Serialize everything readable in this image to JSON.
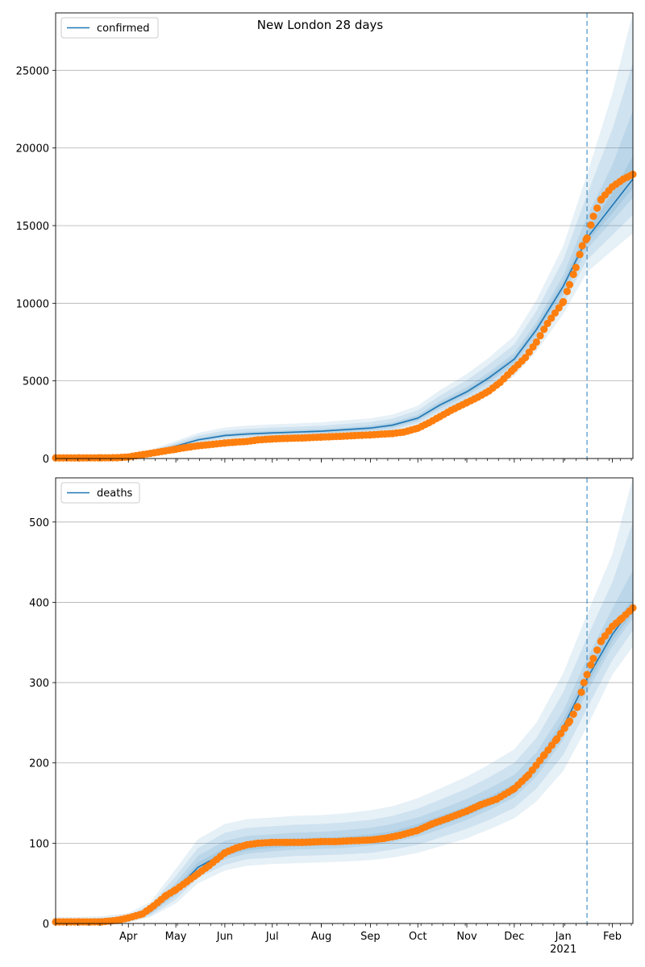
{
  "title": "New London 28 days",
  "colors": {
    "model_line": "#1f77b4",
    "band": "#1f77b4",
    "observed": "#ff7f0e",
    "grid": "#b0b0b0"
  },
  "x_axis": {
    "start": "2020-02-15",
    "end": "2021-02-14",
    "month_labels": [
      {
        "date": "2020-04-01",
        "label": "Apr"
      },
      {
        "date": "2020-05-01",
        "label": "May"
      },
      {
        "date": "2020-06-01",
        "label": "Jun"
      },
      {
        "date": "2020-07-01",
        "label": "Jul"
      },
      {
        "date": "2020-08-01",
        "label": "Aug"
      },
      {
        "date": "2020-09-01",
        "label": "Sep"
      },
      {
        "date": "2020-10-01",
        "label": "Oct"
      },
      {
        "date": "2020-11-01",
        "label": "Nov"
      },
      {
        "date": "2020-12-01",
        "label": "Dec"
      },
      {
        "date": "2021-01-01",
        "label": "Jan"
      },
      {
        "date": "2021-02-01",
        "label": "Feb"
      }
    ],
    "year_label": {
      "date": "2021-01-01",
      "label": "2021"
    },
    "forecast_date": "2021-01-16"
  },
  "chart_data": [
    {
      "type": "line",
      "name": "confirmed",
      "legend": "confirmed",
      "ylim": [
        0,
        28700
      ],
      "yticks": [
        0,
        5000,
        10000,
        15000,
        20000,
        25000
      ],
      "grid": true,
      "legend_position": "top-left",
      "x": [
        "2020-02-15",
        "2020-03-01",
        "2020-03-15",
        "2020-04-01",
        "2020-04-15",
        "2020-05-01",
        "2020-05-15",
        "2020-06-01",
        "2020-06-15",
        "2020-07-01",
        "2020-07-15",
        "2020-08-01",
        "2020-08-15",
        "2020-09-01",
        "2020-09-15",
        "2020-10-01",
        "2020-10-15",
        "2020-11-01",
        "2020-11-15",
        "2020-12-01",
        "2020-12-15",
        "2021-01-01",
        "2021-01-16",
        "2021-02-01",
        "2021-02-14"
      ],
      "model": [
        40,
        40,
        45,
        90,
        400,
        800,
        1200,
        1480,
        1580,
        1650,
        1700,
        1760,
        1850,
        1960,
        2150,
        2600,
        3450,
        4300,
        5200,
        6400,
        8300,
        11100,
        14200,
        16300,
        18000
      ],
      "bands": [
        {
          "lower": [
            35,
            35,
            40,
            70,
            300,
            620,
            950,
            1200,
            1280,
            1330,
            1360,
            1400,
            1470,
            1560,
            1700,
            2100,
            2800,
            3550,
            4300,
            5300,
            6900,
            9300,
            12000,
            13400,
            14500
          ],
          "upper": [
            60,
            60,
            65,
            130,
            560,
            1120,
            1650,
            2000,
            2120,
            2200,
            2260,
            2330,
            2450,
            2590,
            2830,
            3400,
            4400,
            5450,
            6500,
            7900,
            10200,
            13700,
            18300,
            23500,
            28700
          ]
        },
        {
          "lower": [
            36,
            36,
            42,
            75,
            330,
            680,
            1040,
            1300,
            1380,
            1430,
            1470,
            1520,
            1590,
            1690,
            1850,
            2270,
            3020,
            3800,
            4600,
            5680,
            7400,
            9950,
            12800,
            14400,
            15700
          ],
          "upper": [
            52,
            52,
            58,
            115,
            500,
            1000,
            1480,
            1800,
            1910,
            1990,
            2040,
            2110,
            2220,
            2350,
            2570,
            3100,
            4050,
            5050,
            6050,
            7350,
            9500,
            12800,
            17000,
            21200,
            25500
          ]
        },
        {
          "lower": [
            37,
            37,
            43,
            80,
            360,
            730,
            1110,
            1380,
            1470,
            1530,
            1570,
            1620,
            1700,
            1800,
            1980,
            2420,
            3220,
            4050,
            4900,
            6030,
            7850,
            10500,
            13500,
            15300,
            16800
          ],
          "upper": [
            47,
            47,
            52,
            105,
            450,
            900,
            1330,
            1620,
            1720,
            1790,
            1840,
            1900,
            2000,
            2120,
            2330,
            2810,
            3700,
            4600,
            5550,
            6800,
            8800,
            11800,
            15600,
            18900,
            22400
          ]
        },
        {
          "lower": [
            38,
            38,
            44,
            84,
            380,
            765,
            1160,
            1430,
            1530,
            1590,
            1640,
            1690,
            1780,
            1880,
            2060,
            2510,
            3340,
            4180,
            5060,
            6220,
            8100,
            10800,
            13900,
            15800,
            17400
          ],
          "upper": [
            43,
            43,
            48,
            97,
            420,
            840,
            1250,
            1530,
            1630,
            1700,
            1750,
            1810,
            1910,
            2030,
            2230,
            2700,
            3560,
            4420,
            5350,
            6580,
            8550,
            11400,
            14700,
            17100,
            19500
          ]
        }
      ],
      "observed": [
        [
          "2020-02-15",
          40
        ],
        [
          "2020-03-01",
          40
        ],
        [
          "2020-03-15",
          45
        ],
        [
          "2020-03-25",
          55
        ],
        [
          "2020-04-01",
          100
        ],
        [
          "2020-04-08",
          220
        ],
        [
          "2020-04-15",
          330
        ],
        [
          "2020-04-22",
          450
        ],
        [
          "2020-05-01",
          600
        ],
        [
          "2020-05-08",
          720
        ],
        [
          "2020-05-15",
          820
        ],
        [
          "2020-05-22",
          890
        ],
        [
          "2020-06-01",
          1000
        ],
        [
          "2020-06-08",
          1060
        ],
        [
          "2020-06-15",
          1100
        ],
        [
          "2020-06-22",
          1200
        ],
        [
          "2020-07-01",
          1260
        ],
        [
          "2020-07-08",
          1290
        ],
        [
          "2020-07-15",
          1310
        ],
        [
          "2020-07-22",
          1330
        ],
        [
          "2020-08-01",
          1380
        ],
        [
          "2020-08-08",
          1410
        ],
        [
          "2020-08-15",
          1440
        ],
        [
          "2020-08-22",
          1480
        ],
        [
          "2020-09-01",
          1520
        ],
        [
          "2020-09-08",
          1570
        ],
        [
          "2020-09-15",
          1610
        ],
        [
          "2020-09-22",
          1700
        ],
        [
          "2020-10-01",
          1950
        ],
        [
          "2020-10-08",
          2300
        ],
        [
          "2020-10-15",
          2700
        ],
        [
          "2020-10-22",
          3100
        ],
        [
          "2020-11-01",
          3600
        ],
        [
          "2020-11-08",
          3950
        ],
        [
          "2020-11-15",
          4350
        ],
        [
          "2020-11-22",
          4900
        ],
        [
          "2020-12-01",
          5800
        ],
        [
          "2020-12-08",
          6500
        ],
        [
          "2020-12-15",
          7500
        ],
        [
          "2020-12-22",
          8700
        ],
        [
          "2021-01-01",
          10100
        ],
        [
          "2021-01-05",
          11200
        ],
        [
          "2021-01-09",
          12300
        ],
        [
          "2021-01-13",
          13700
        ],
        [
          "2021-01-16",
          14200
        ],
        [
          "2021-01-20",
          15600
        ],
        [
          "2021-01-25",
          16700
        ],
        [
          "2021-02-01",
          17500
        ],
        [
          "2021-02-08",
          18000
        ],
        [
          "2021-02-14",
          18300
        ]
      ]
    },
    {
      "type": "line",
      "name": "deaths",
      "legend": "deaths",
      "ylim": [
        0,
        555
      ],
      "yticks": [
        0,
        100,
        200,
        300,
        400,
        500
      ],
      "grid": true,
      "legend_position": "top-left",
      "x": [
        "2020-02-15",
        "2020-03-01",
        "2020-03-15",
        "2020-04-01",
        "2020-04-15",
        "2020-05-01",
        "2020-05-15",
        "2020-06-01",
        "2020-06-15",
        "2020-07-01",
        "2020-07-15",
        "2020-08-01",
        "2020-08-15",
        "2020-09-01",
        "2020-09-15",
        "2020-10-01",
        "2020-10-15",
        "2020-11-01",
        "2020-11-15",
        "2020-12-01",
        "2020-12-15",
        "2021-01-01",
        "2021-01-16",
        "2021-02-01",
        "2021-02-14"
      ],
      "model": [
        2,
        2,
        2,
        5,
        15,
        42,
        70,
        88,
        96,
        99,
        101,
        102,
        103,
        106,
        110,
        118,
        128,
        140,
        152,
        168,
        195,
        245,
        305,
        360,
        395
      ],
      "bands": [
        {
          "lower": [
            0,
            0,
            0,
            1,
            8,
            25,
            50,
            66,
            72,
            74,
            75,
            76,
            77,
            79,
            82,
            88,
            96,
            106,
            117,
            131,
            152,
            190,
            245,
            310,
            345
          ],
          "upper": [
            8,
            8,
            9,
            13,
            27,
            68,
            105,
            124,
            130,
            132,
            134,
            135,
            137,
            141,
            146,
            156,
            168,
            183,
            198,
            217,
            250,
            312,
            385,
            460,
            555
          ]
        },
        {
          "lower": [
            0,
            0,
            0,
            2,
            10,
            30,
            57,
            73,
            80,
            82,
            84,
            85,
            86,
            88,
            92,
            98,
            107,
            118,
            129,
            144,
            168,
            210,
            268,
            328,
            365
          ],
          "upper": [
            6,
            6,
            7,
            10,
            23,
            59,
            94,
            113,
            119,
            121,
            123,
            124,
            126,
            129,
            134,
            143,
            154,
            168,
            182,
            200,
            231,
            288,
            356,
            425,
            500
          ]
        },
        {
          "lower": [
            1,
            1,
            1,
            3,
            12,
            35,
            63,
            80,
            87,
            90,
            92,
            93,
            94,
            97,
            101,
            108,
            117,
            129,
            141,
            157,
            183,
            229,
            288,
            345,
            380
          ],
          "upper": [
            4,
            4,
            5,
            8,
            19,
            51,
            84,
            103,
            109,
            111,
            113,
            114,
            116,
            119,
            124,
            132,
            142,
            155,
            168,
            185,
            213,
            265,
            330,
            392,
            440
          ]
        },
        {
          "lower": [
            1,
            1,
            1,
            4,
            13,
            38,
            66,
            84,
            91,
            94,
            96,
            97,
            98,
            101,
            105,
            112,
            122,
            134,
            146,
            162,
            189,
            236,
            296,
            352,
            386
          ],
          "upper": [
            3,
            3,
            3,
            6,
            17,
            46,
            76,
            94,
            101,
            104,
            106,
            107,
            108,
            111,
            115,
            124,
            134,
            146,
            158,
            174,
            201,
            254,
            315,
            370,
            405
          ]
        }
      ],
      "observed": [
        [
          "2020-02-15",
          2
        ],
        [
          "2020-03-01",
          2
        ],
        [
          "2020-03-15",
          2
        ],
        [
          "2020-03-25",
          4
        ],
        [
          "2020-04-01",
          7
        ],
        [
          "2020-04-10",
          12
        ],
        [
          "2020-04-17",
          22
        ],
        [
          "2020-04-25",
          35
        ],
        [
          "2020-05-01",
          42
        ],
        [
          "2020-05-08",
          52
        ],
        [
          "2020-05-15",
          62
        ],
        [
          "2020-05-22",
          72
        ],
        [
          "2020-06-01",
          88
        ],
        [
          "2020-06-08",
          94
        ],
        [
          "2020-06-15",
          98
        ],
        [
          "2020-06-22",
          100
        ],
        [
          "2020-07-01",
          101
        ],
        [
          "2020-07-10",
          101
        ],
        [
          "2020-07-20",
          101
        ],
        [
          "2020-08-01",
          102
        ],
        [
          "2020-08-10",
          102
        ],
        [
          "2020-08-20",
          103
        ],
        [
          "2020-09-01",
          104
        ],
        [
          "2020-09-10",
          106
        ],
        [
          "2020-09-20",
          110
        ],
        [
          "2020-10-01",
          116
        ],
        [
          "2020-10-10",
          124
        ],
        [
          "2020-10-20",
          131
        ],
        [
          "2020-11-01",
          140
        ],
        [
          "2020-11-10",
          148
        ],
        [
          "2020-11-20",
          155
        ],
        [
          "2020-12-01",
          168
        ],
        [
          "2020-12-10",
          185
        ],
        [
          "2020-12-20",
          210
        ],
        [
          "2020-12-28",
          230
        ],
        [
          "2021-01-05",
          252
        ],
        [
          "2021-01-10",
          270
        ],
        [
          "2021-01-14",
          300
        ],
        [
          "2021-01-16",
          310
        ],
        [
          "2021-01-20",
          330
        ],
        [
          "2021-01-25",
          352
        ],
        [
          "2021-02-01",
          370
        ],
        [
          "2021-02-07",
          380
        ],
        [
          "2021-02-14",
          393
        ]
      ]
    }
  ]
}
